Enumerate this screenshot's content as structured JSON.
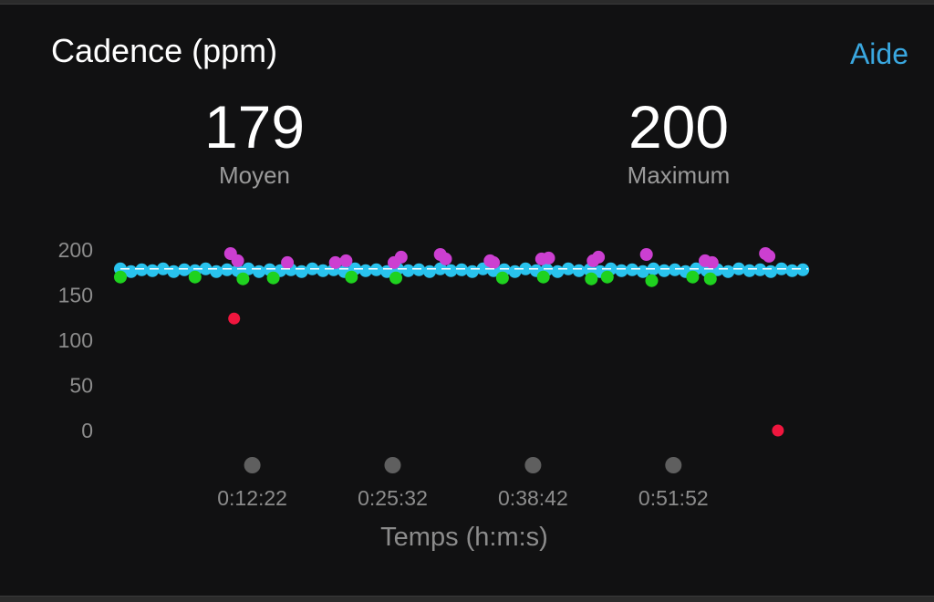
{
  "header": {
    "title": "Cadence (ppm)",
    "help_label": "Aide"
  },
  "stats": {
    "average": {
      "value": "179",
      "label": "Moyen"
    },
    "maximum": {
      "value": "200",
      "label": "Maximum"
    }
  },
  "chart_data": {
    "type": "scatter",
    "title": "Cadence (ppm)",
    "xlabel": "Temps (h:m:s)",
    "ylabel": "",
    "ylim": [
      0,
      200
    ],
    "yticks": [
      200,
      150,
      100,
      50,
      0
    ],
    "xticks": [
      "0:12:22",
      "0:25:32",
      "0:38:42",
      "0:51:52"
    ],
    "xticks_sec": [
      742,
      1532,
      2322,
      3112
    ],
    "xlim_sec": [
      0,
      3870
    ],
    "average_line": 179,
    "grid": false,
    "legend": "none",
    "colors": {
      "main": "#29c3ee",
      "low": "#1fd21f",
      "high": "#cc3fd1",
      "outlier": "#f0163e",
      "average_line": "#ffffff",
      "marker": "#5f5f5f"
    },
    "series": [
      {
        "band": "main",
        "values": [
          [
            0,
            179
          ],
          [
            60,
            176
          ],
          [
            120,
            178
          ],
          [
            180,
            177
          ],
          [
            240,
            179
          ],
          [
            300,
            176
          ],
          [
            360,
            178
          ],
          [
            420,
            177
          ],
          [
            480,
            179
          ],
          [
            540,
            176
          ],
          [
            600,
            178
          ],
          [
            660,
            177
          ],
          [
            720,
            179
          ],
          [
            780,
            176
          ],
          [
            840,
            178
          ],
          [
            900,
            177
          ],
          [
            960,
            178
          ],
          [
            1020,
            176
          ],
          [
            1080,
            179
          ],
          [
            1140,
            177
          ],
          [
            1200,
            178
          ],
          [
            1260,
            176
          ],
          [
            1320,
            179
          ],
          [
            1380,
            177
          ],
          [
            1440,
            178
          ],
          [
            1500,
            176
          ],
          [
            1560,
            179
          ],
          [
            1620,
            177
          ],
          [
            1680,
            178
          ],
          [
            1740,
            176
          ],
          [
            1800,
            179
          ],
          [
            1860,
            177
          ],
          [
            1920,
            178
          ],
          [
            1980,
            176
          ],
          [
            2040,
            179
          ],
          [
            2100,
            177
          ],
          [
            2160,
            178
          ],
          [
            2220,
            176
          ],
          [
            2280,
            179
          ],
          [
            2340,
            177
          ],
          [
            2400,
            178
          ],
          [
            2460,
            176
          ],
          [
            2520,
            179
          ],
          [
            2580,
            177
          ],
          [
            2640,
            178
          ],
          [
            2700,
            176
          ],
          [
            2760,
            179
          ],
          [
            2820,
            177
          ],
          [
            2880,
            178
          ],
          [
            2940,
            176
          ],
          [
            3000,
            179
          ],
          [
            3060,
            177
          ],
          [
            3120,
            178
          ],
          [
            3180,
            176
          ],
          [
            3240,
            179
          ],
          [
            3300,
            177
          ],
          [
            3360,
            178
          ],
          [
            3420,
            176
          ],
          [
            3480,
            179
          ],
          [
            3540,
            177
          ],
          [
            3600,
            178
          ],
          [
            3660,
            176
          ],
          [
            3720,
            179
          ],
          [
            3780,
            177
          ],
          [
            3840,
            178
          ]
        ]
      },
      {
        "band": "low",
        "values": [
          [
            0,
            170
          ],
          [
            420,
            170
          ],
          [
            690,
            168
          ],
          [
            860,
            169
          ],
          [
            1300,
            170
          ],
          [
            1550,
            169
          ],
          [
            2150,
            169
          ],
          [
            2380,
            170
          ],
          [
            2650,
            168
          ],
          [
            2740,
            170
          ],
          [
            2990,
            166
          ],
          [
            3220,
            170
          ],
          [
            3320,
            168
          ]
        ]
      },
      {
        "band": "high",
        "values": [
          [
            620,
            196
          ],
          [
            660,
            188
          ],
          [
            940,
            186
          ],
          [
            1210,
            186
          ],
          [
            1270,
            188
          ],
          [
            1540,
            186
          ],
          [
            1580,
            192
          ],
          [
            1800,
            195
          ],
          [
            1830,
            190
          ],
          [
            2080,
            188
          ],
          [
            2100,
            186
          ],
          [
            2370,
            190
          ],
          [
            2410,
            191
          ],
          [
            2660,
            188
          ],
          [
            2690,
            192
          ],
          [
            2960,
            195
          ],
          [
            3290,
            188
          ],
          [
            3330,
            186
          ],
          [
            3630,
            196
          ],
          [
            3650,
            193
          ]
        ]
      },
      {
        "band": "outlier",
        "values": [
          [
            640,
            124
          ],
          [
            3700,
            0
          ]
        ]
      }
    ]
  }
}
